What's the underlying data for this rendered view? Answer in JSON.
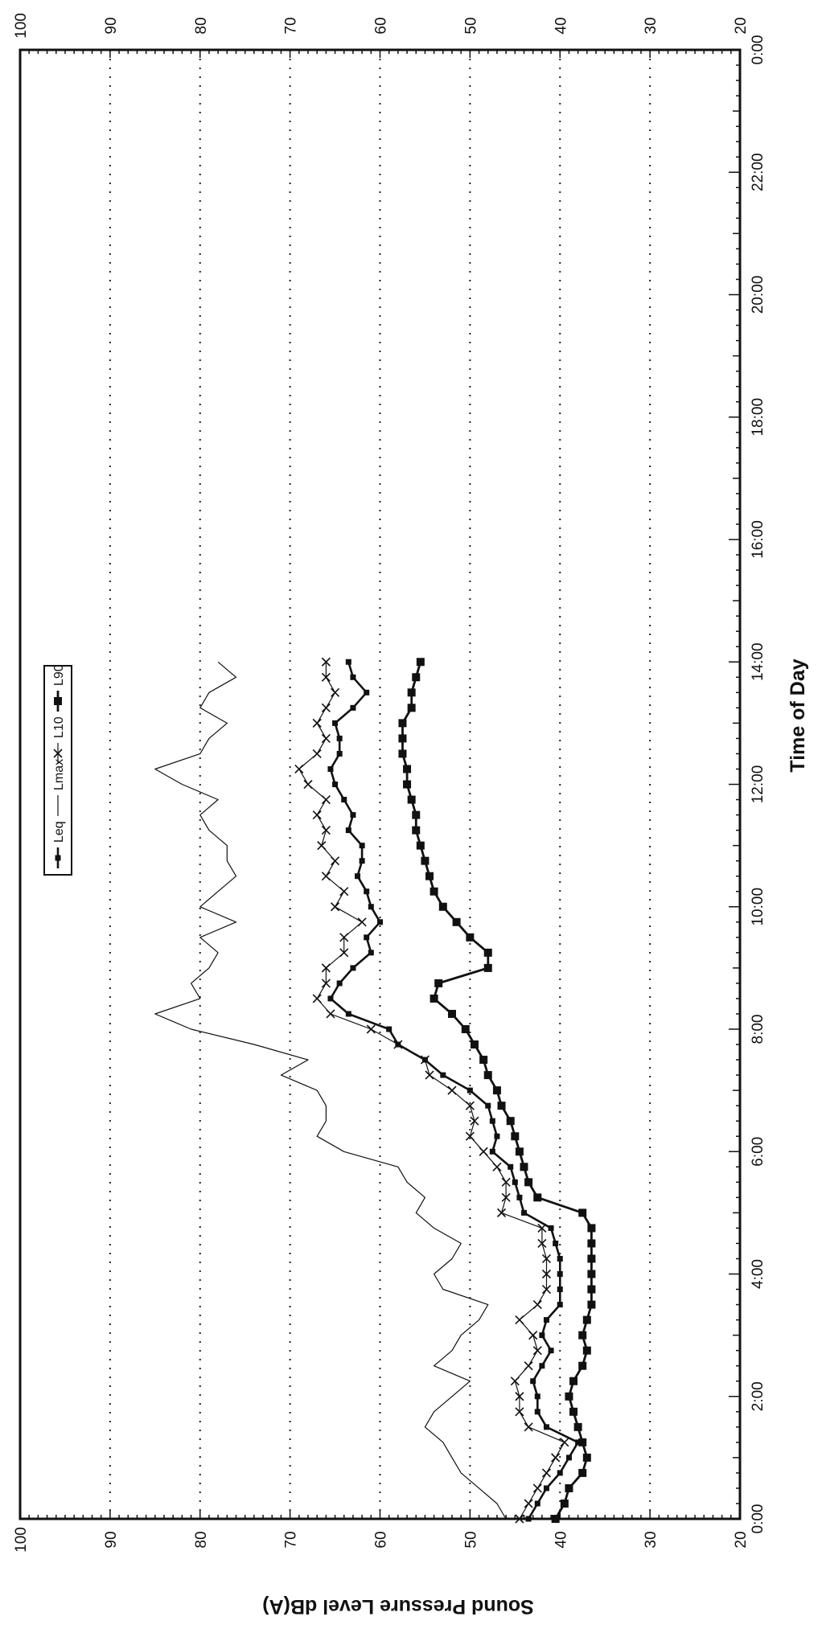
{
  "chart_data": {
    "type": "line",
    "orientation": "rotated-90",
    "xlabel": "Time of Day",
    "ylabel": "Sound Pressure Level dB(A)",
    "xlim": [
      0,
      24
    ],
    "ylim": [
      20,
      100
    ],
    "x_ticks": [
      {
        "value": 0,
        "label": "0:00"
      },
      {
        "value": 2,
        "label": "2:00"
      },
      {
        "value": 4,
        "label": "4:00"
      },
      {
        "value": 6,
        "label": "6:00"
      },
      {
        "value": 8,
        "label": "8:00"
      },
      {
        "value": 10,
        "label": "10:00"
      },
      {
        "value": 12,
        "label": "12:00"
      },
      {
        "value": 14,
        "label": "14:00"
      },
      {
        "value": 16,
        "label": "16:00"
      },
      {
        "value": 18,
        "label": "18:00"
      },
      {
        "value": 20,
        "label": "20:00"
      },
      {
        "value": 22,
        "label": "22:00"
      },
      {
        "value": 24,
        "label": "0:00"
      }
    ],
    "y_ticks": [
      {
        "value": 20,
        "label": "20"
      },
      {
        "value": 30,
        "label": "30"
      },
      {
        "value": 40,
        "label": "40"
      },
      {
        "value": 50,
        "label": "50"
      },
      {
        "value": 60,
        "label": "60"
      },
      {
        "value": 70,
        "label": "70"
      },
      {
        "value": 80,
        "label": "80"
      },
      {
        "value": 90,
        "label": "90"
      },
      {
        "value": 100,
        "label": "100"
      }
    ],
    "grid": "horizontal-dotted",
    "legend_position": "top-right",
    "series": [
      {
        "name": "Leq",
        "marker": "small-square",
        "color": "#111111",
        "x": [
          0,
          0.25,
          0.5,
          0.75,
          1,
          1.25,
          1.5,
          1.75,
          2,
          2.25,
          2.5,
          2.75,
          3,
          3.25,
          3.5,
          3.75,
          4,
          4.25,
          4.5,
          4.75,
          5,
          5.25,
          5.5,
          5.75,
          6,
          6.25,
          6.5,
          6.75,
          7,
          7.25,
          7.5,
          7.75,
          8,
          8.25,
          8.5,
          8.75,
          9,
          9.25,
          9.5,
          9.75,
          10,
          10.25,
          10.5,
          10.75,
          11,
          11.25,
          11.5,
          11.75,
          12,
          12.25,
          12.5,
          12.75,
          13,
          13.25,
          13.5,
          13.75,
          14
        ],
        "values": [
          43.5,
          42.5,
          41.5,
          40,
          39,
          38,
          41.5,
          42.5,
          42.5,
          43,
          42,
          41,
          42,
          41.5,
          40,
          40,
          40,
          40,
          40.5,
          41,
          44,
          44.5,
          45,
          45.5,
          47.5,
          47,
          47.5,
          48,
          50,
          53,
          55,
          58,
          59,
          63.5,
          65.5,
          64.5,
          63,
          61,
          61.5,
          60,
          61,
          61.5,
          62.5,
          62,
          62,
          63.5,
          63,
          64,
          65,
          65.5,
          64.5,
          64.5,
          65,
          63,
          61.5,
          63,
          63.5
        ]
      },
      {
        "name": "Lmax",
        "marker": "none",
        "color": "#111111",
        "x": [
          0,
          0.25,
          0.5,
          0.75,
          1,
          1.25,
          1.5,
          1.75,
          2,
          2.25,
          2.5,
          2.75,
          3,
          3.25,
          3.5,
          3.75,
          4,
          4.25,
          4.5,
          4.75,
          5,
          5.25,
          5.5,
          5.75,
          6,
          6.25,
          6.5,
          6.75,
          7,
          7.25,
          7.5,
          7.75,
          8,
          8.25,
          8.5,
          8.75,
          9,
          9.25,
          9.5,
          9.75,
          10,
          10.25,
          10.5,
          10.75,
          11,
          11.25,
          11.5,
          11.75,
          12,
          12.25,
          12.5,
          12.75,
          13,
          13.25,
          13.5,
          13.75,
          14
        ],
        "values": [
          46,
          47,
          49,
          51,
          52,
          53,
          55,
          54,
          52,
          50,
          54,
          52,
          51,
          49,
          48,
          53,
          54,
          52,
          51,
          54,
          56,
          55,
          57,
          58,
          64,
          67,
          66,
          66,
          67,
          71,
          68,
          74,
          81,
          85,
          80,
          81,
          79,
          78,
          80,
          76,
          80,
          78,
          76,
          77,
          77,
          79,
          80,
          78,
          82,
          85,
          80,
          79,
          77,
          80,
          79,
          76,
          78
        ]
      },
      {
        "name": "L10",
        "marker": "x",
        "color": "#111111",
        "x": [
          0,
          0.25,
          0.5,
          0.75,
          1,
          1.25,
          1.5,
          1.75,
          2,
          2.25,
          2.5,
          2.75,
          3,
          3.25,
          3.5,
          3.75,
          4,
          4.25,
          4.5,
          4.75,
          5,
          5.25,
          5.5,
          5.75,
          6,
          6.25,
          6.5,
          6.75,
          7,
          7.25,
          7.5,
          7.75,
          8,
          8.25,
          8.5,
          8.75,
          9,
          9.25,
          9.5,
          9.75,
          10,
          10.25,
          10.5,
          10.75,
          11,
          11.25,
          11.5,
          11.75,
          12,
          12.25,
          12.5,
          12.75,
          13,
          13.25,
          13.5,
          13.75,
          14
        ],
        "values": [
          44.5,
          43.5,
          42.5,
          41.5,
          40.5,
          39.5,
          43.5,
          44.5,
          44.5,
          45,
          43.5,
          42.5,
          43,
          44.5,
          42.5,
          41.5,
          41.5,
          41.5,
          42,
          42,
          46.5,
          46,
          46,
          47,
          48.5,
          50,
          49.5,
          50,
          52,
          54.5,
          55,
          58,
          61,
          65.5,
          67,
          66,
          66,
          64,
          64,
          62,
          65,
          64,
          66,
          65,
          66.5,
          66,
          67,
          66,
          68,
          69,
          67,
          66,
          67,
          66,
          65,
          66,
          66
        ]
      },
      {
        "name": "L90",
        "marker": "filled-square",
        "color": "#111111",
        "x": [
          0,
          0.25,
          0.5,
          0.75,
          1,
          1.25,
          1.5,
          1.75,
          2,
          2.25,
          2.5,
          2.75,
          3,
          3.25,
          3.5,
          3.75,
          4,
          4.25,
          4.5,
          4.75,
          5,
          5.25,
          5.5,
          5.75,
          6,
          6.25,
          6.5,
          6.75,
          7,
          7.25,
          7.5,
          7.75,
          8,
          8.25,
          8.5,
          8.75,
          9,
          9.25,
          9.5,
          9.75,
          10,
          10.25,
          10.5,
          10.75,
          11,
          11.25,
          11.5,
          11.75,
          12,
          12.25,
          12.5,
          12.75,
          13,
          13.25,
          13.5,
          13.75,
          14
        ],
        "values": [
          40.5,
          39.5,
          39,
          37.5,
          37,
          37.5,
          38,
          38.5,
          39,
          38.5,
          37.5,
          37,
          37.5,
          37,
          36.5,
          36.5,
          36.5,
          36.5,
          36.5,
          36.5,
          37.5,
          42.5,
          43.5,
          44,
          44.5,
          45,
          45.5,
          46.5,
          47,
          48,
          48.5,
          49.5,
          50.5,
          52,
          54,
          53.5,
          48,
          48,
          50,
          51.5,
          53,
          54,
          54.5,
          55,
          55.5,
          56,
          56,
          56.5,
          57,
          57,
          57.5,
          57.5,
          57.5,
          56.5,
          56.5,
          56,
          55.5
        ]
      }
    ]
  }
}
